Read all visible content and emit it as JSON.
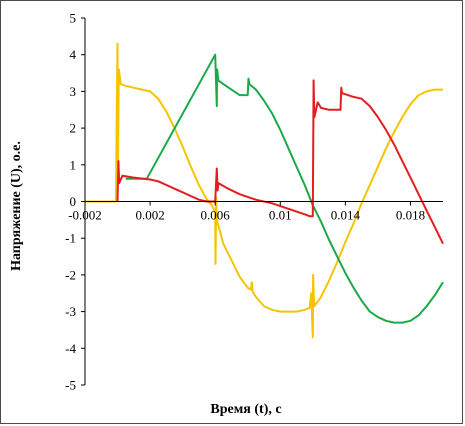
{
  "chart_data": {
    "type": "line",
    "title": "",
    "xlabel": "Время (t), с",
    "ylabel": "Напряжение (U), о.е.",
    "xlim": [
      -0.002,
      0.02
    ],
    "ylim": [
      -5,
      5
    ],
    "x_ticks": [
      -0.002,
      0.002,
      0.006,
      0.01,
      0.014,
      0.018
    ],
    "x_tick_labels": [
      "-0.002",
      "0.002",
      "0.006",
      "0.01",
      "0.014",
      "0.018"
    ],
    "y_ticks": [
      -5,
      -4,
      -3,
      -2,
      -1,
      0,
      1,
      2,
      3,
      4,
      5
    ],
    "y_tick_labels": [
      "-5",
      "-4",
      "-3",
      "-2",
      "-1",
      "0",
      "1",
      "2",
      "3",
      "4",
      "5"
    ],
    "grid": false,
    "legend": "none",
    "series": [
      {
        "color": "#F5C400",
        "x": [
          -0.002,
          -0.0001,
          0.0,
          3e-05,
          8e-05,
          0.0002,
          0.0005,
          0.001,
          0.0015,
          0.002,
          0.0025,
          0.003,
          0.0035,
          0.004,
          0.0045,
          0.005,
          0.0055,
          0.0058,
          0.0059,
          0.006,
          0.00602,
          0.00606,
          0.0061,
          0.0065,
          0.007,
          0.0075,
          0.008,
          0.0082,
          0.00825,
          0.0083,
          0.0085,
          0.009,
          0.0095,
          0.01,
          0.0105,
          0.011,
          0.0115,
          0.0118,
          0.0119,
          0.012,
          0.01202,
          0.01206,
          0.0121,
          0.0125,
          0.013,
          0.0135,
          0.014,
          0.0145,
          0.015,
          0.0155,
          0.016,
          0.0165,
          0.017,
          0.0175,
          0.018,
          0.0185,
          0.019,
          0.0195,
          0.02
        ],
        "values": [
          0.0,
          0.0,
          4.3,
          1.0,
          3.6,
          3.2,
          3.15,
          3.1,
          3.05,
          3.0,
          2.8,
          2.45,
          2.0,
          1.5,
          0.95,
          0.45,
          0.05,
          -0.1,
          -0.2,
          -0.3,
          -1.7,
          0.1,
          -0.5,
          -1.15,
          -1.6,
          -2.05,
          -2.35,
          -2.4,
          -2.2,
          -2.45,
          -2.6,
          -2.85,
          -2.95,
          -3.0,
          -3.0,
          -3.0,
          -2.95,
          -2.9,
          -2.5,
          -3.7,
          -2.0,
          -2.6,
          -2.85,
          -2.6,
          -2.15,
          -1.65,
          -1.1,
          -0.6,
          -0.05,
          0.45,
          0.95,
          1.45,
          1.9,
          2.3,
          2.65,
          2.9,
          3.0,
          3.05,
          3.05
        ]
      },
      {
        "color": "#1BAA48",
        "x": [
          0.0005,
          0.0012,
          0.0018,
          0.006,
          0.0061,
          0.00612,
          0.0062,
          0.0065,
          0.0075,
          0.008,
          0.00805,
          0.0081,
          0.0085,
          0.009,
          0.0095,
          0.01,
          0.0105,
          0.011,
          0.0115,
          0.012,
          0.0125,
          0.013,
          0.0135,
          0.014,
          0.0145,
          0.015,
          0.0155,
          0.016,
          0.0165,
          0.017,
          0.0175,
          0.018,
          0.0185,
          0.019,
          0.0195,
          0.02
        ],
        "values": [
          0.62,
          0.62,
          0.62,
          4.0,
          2.6,
          3.6,
          3.3,
          3.2,
          2.9,
          2.9,
          3.35,
          3.2,
          3.05,
          2.75,
          2.4,
          1.95,
          1.45,
          0.95,
          0.45,
          -0.1,
          -0.55,
          -1.05,
          -1.5,
          -1.95,
          -2.35,
          -2.7,
          -3.0,
          -3.15,
          -3.25,
          -3.3,
          -3.3,
          -3.25,
          -3.1,
          -2.85,
          -2.55,
          -2.2
        ]
      },
      {
        "color": "#E41E1E",
        "x": [
          0.0,
          5e-05,
          0.0001,
          0.0003,
          0.001,
          0.002,
          0.0025,
          0.003,
          0.0035,
          0.004,
          0.0045,
          0.005,
          0.0055,
          0.006,
          0.0061,
          0.00615,
          0.0062,
          0.0068,
          0.0075,
          0.0085,
          0.0095,
          0.0105,
          0.0115,
          0.0118,
          0.012,
          0.01205,
          0.0121,
          0.0123,
          0.0125,
          0.013,
          0.0135,
          0.0137,
          0.01375,
          0.0138,
          0.0145,
          0.015,
          0.0155,
          0.016,
          0.0165,
          0.017,
          0.0175,
          0.018,
          0.0185,
          0.019,
          0.0195,
          0.02
        ],
        "values": [
          0.0,
          1.1,
          0.5,
          0.7,
          0.65,
          0.6,
          0.55,
          0.45,
          0.35,
          0.25,
          0.15,
          0.05,
          0.0,
          0.0,
          0.9,
          0.3,
          0.5,
          0.35,
          0.2,
          0.05,
          -0.05,
          -0.2,
          -0.35,
          -0.4,
          -0.4,
          3.3,
          2.3,
          2.7,
          2.55,
          2.5,
          2.5,
          2.5,
          3.1,
          2.95,
          2.85,
          2.8,
          2.6,
          2.3,
          1.95,
          1.55,
          1.1,
          0.65,
          0.2,
          -0.25,
          -0.7,
          -1.15
        ]
      }
    ]
  }
}
